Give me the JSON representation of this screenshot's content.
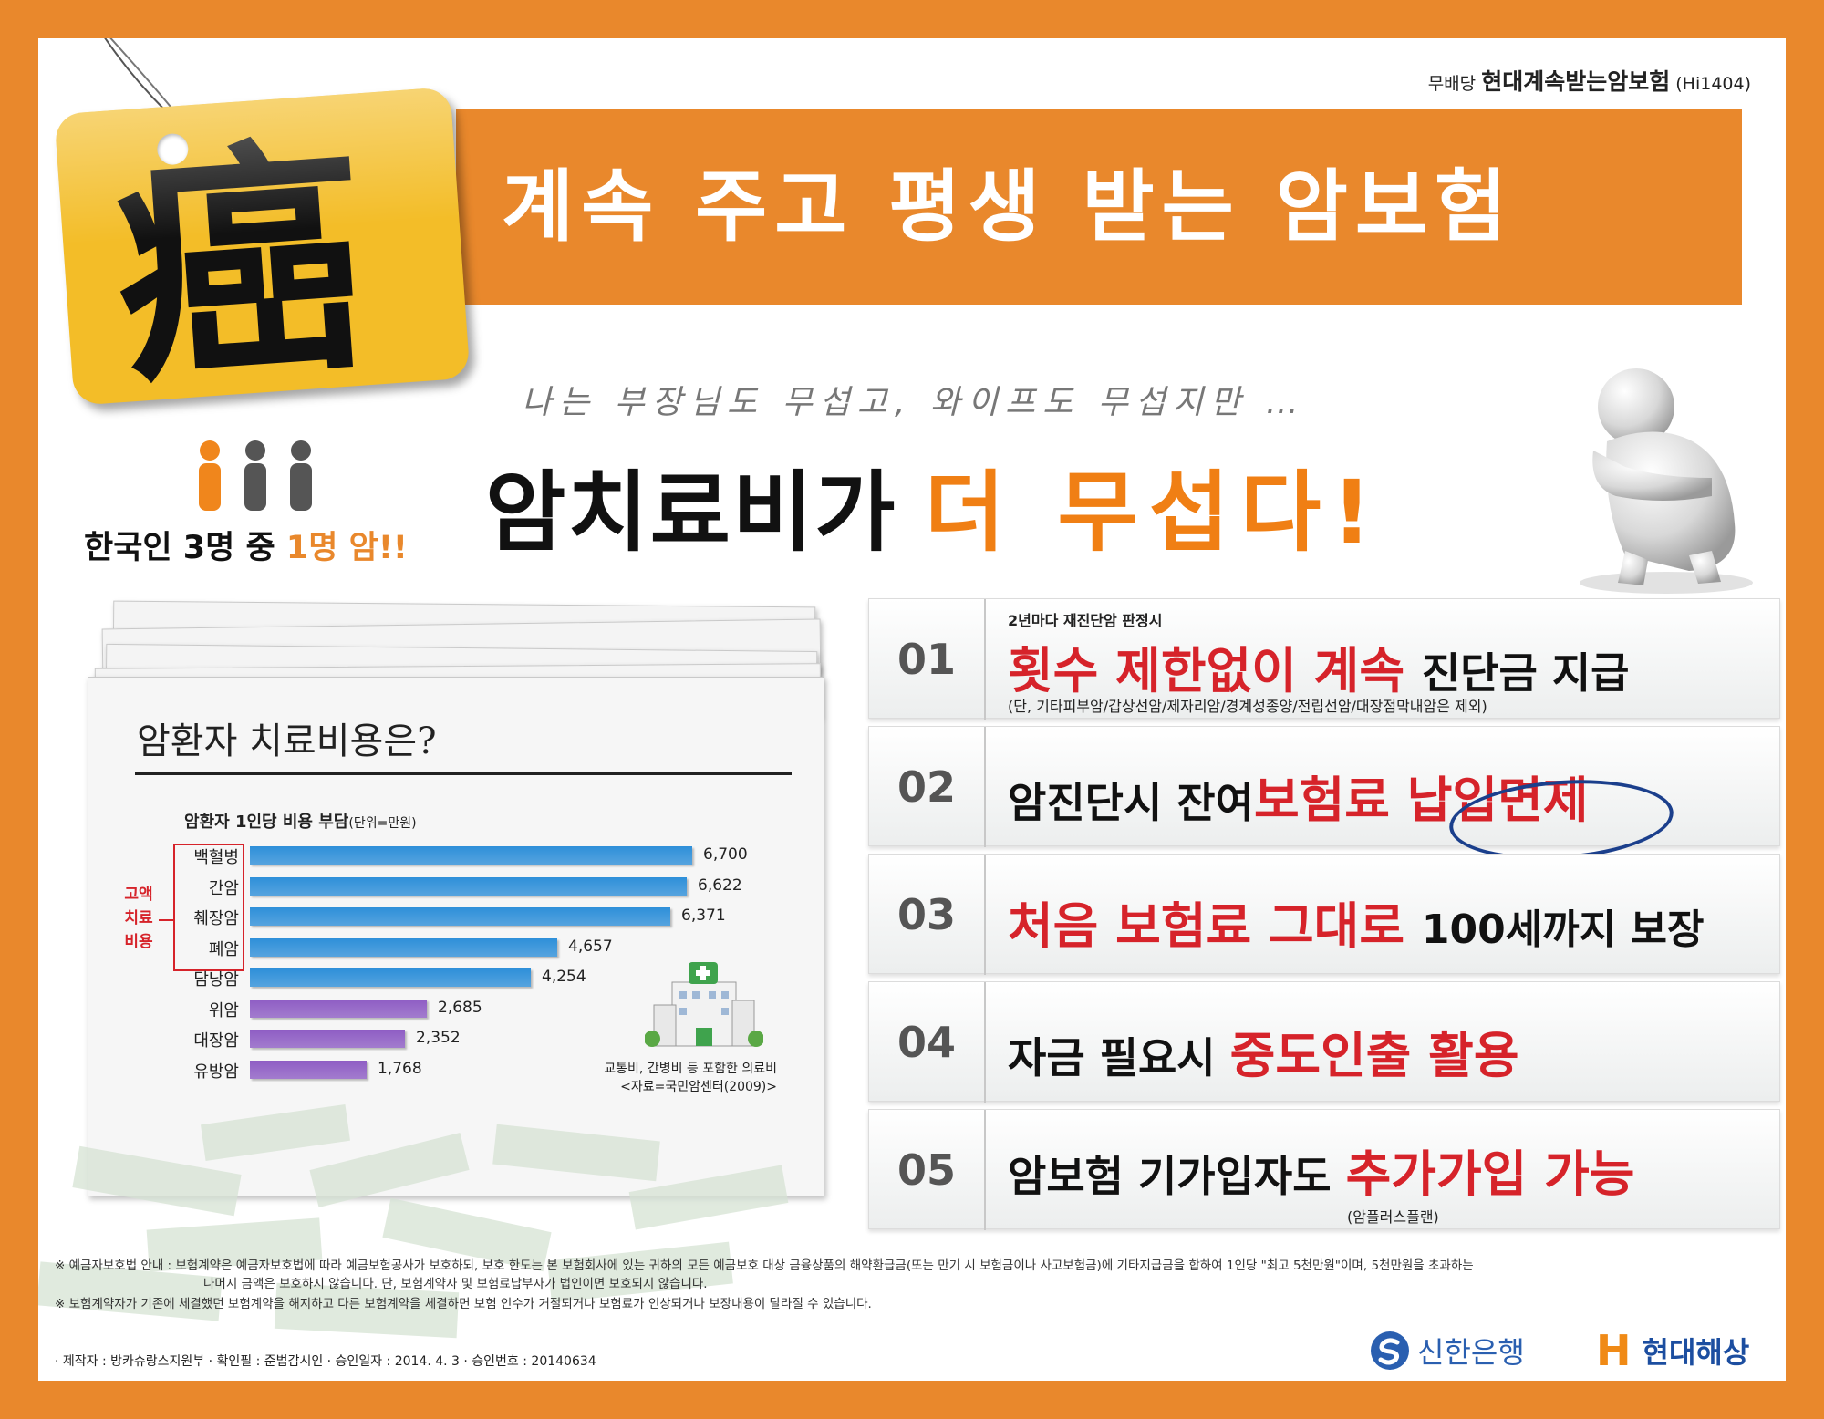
{
  "header": {
    "product_prefix": "무배당",
    "product_name": "현대계속받는암보험",
    "product_code": "(Hi1404)",
    "hanja": "癌",
    "banner": "계속 주고 평생 받는 암보험"
  },
  "intro": {
    "stat_prefix": "한국인 3명 중",
    "stat_highlight": "1명 암!!",
    "subheadline": "나는 부장님도 무섭고, 와이프도 무섭지만 …",
    "headline_black": "암치료비가",
    "headline_orange": "더 무섭다!"
  },
  "chart_data": {
    "type": "bar",
    "title": "암환자 치료비용은?",
    "subtitle": "암환자 1인당 비용 부담",
    "unit": "(단위=만원)",
    "highlight_label": "고액 치료 비용",
    "highlight_lines": [
      "고액",
      "치료",
      "비용"
    ],
    "categories": [
      "백혈병",
      "간암",
      "췌장암",
      "폐암",
      "담낭암",
      "위암",
      "대장암",
      "유방암"
    ],
    "values": [
      6700,
      6622,
      6371,
      4657,
      4254,
      2685,
      2352,
      1768
    ],
    "value_labels": [
      "6,700",
      "6,622",
      "6,371",
      "4,657",
      "4,254",
      "2,685",
      "2,352",
      "1,768"
    ],
    "highlighted_count": 5,
    "colors": {
      "high": "#2e8fd9",
      "low": "#8e5dc4"
    },
    "note": "교통비, 간병비 등 포함한 의료비",
    "source": "<자료=국민암센터(2009)>"
  },
  "benefits": [
    {
      "num": "01",
      "top": "2년마다 재진단암 판정시",
      "red": "횟수 제한없이 계속",
      "black": "진단금 지급",
      "note": "(단, 기타피부암/갑상선암/제자리암/경계성종양/전립선암/대장점막내암은 제외)"
    },
    {
      "num": "02",
      "black": "암진단시 잔여",
      "red": "보험료 납입면제"
    },
    {
      "num": "03",
      "red": "처음 보험료 그대로",
      "black": "100세까지 보장"
    },
    {
      "num": "04",
      "black": "자금 필요시",
      "red": "중도인출 활용"
    },
    {
      "num": "05",
      "black": "암보험 기가입자도",
      "red": "추가가입 가능",
      "note": "(암플러스플랜)"
    }
  ],
  "footer": {
    "notice1_line1": "※ 예금자보호법 안내 : 보험계약은 예금자보호법에 따라 예금보험공사가 보호하되, 보호 한도는 본 보험회사에 있는 귀하의 모든 예금보호 대상 금융상품의 해약환급금(또는 만기 시 보험금이나 사고보험금)에 기타지급금을 합하여 1인당 \"최고 5천만원\"이며, 5천만원을 초과하는",
    "notice1_line2": "나머지 금액은 보호하지 않습니다. 단, 보험계약자 및 보험료납부자가 법인이면 보호되지 않습니다.",
    "notice2": "※ 보험계약자가 기존에 체결했던 보험계약을 해지하고 다른 보험계약을 체결하면 보험 인수가 거절되거나 보험료가 인상되거나 보장내용이 달라질 수 있습니다.",
    "credits": "· 제작자 : 방카슈랑스지원부 · 확인필 : 준법감시인 · 승인일자 : 2014. 4. 3 · 승인번호 : 20140634",
    "logo_shinhan": "신한은행",
    "logo_hyundai": "현대해상",
    "logo_h": "H"
  },
  "colors": {
    "orange": "#e9882c",
    "tag": "#f3bd28",
    "red": "#d6232a",
    "circle": "#1b3f8c"
  }
}
